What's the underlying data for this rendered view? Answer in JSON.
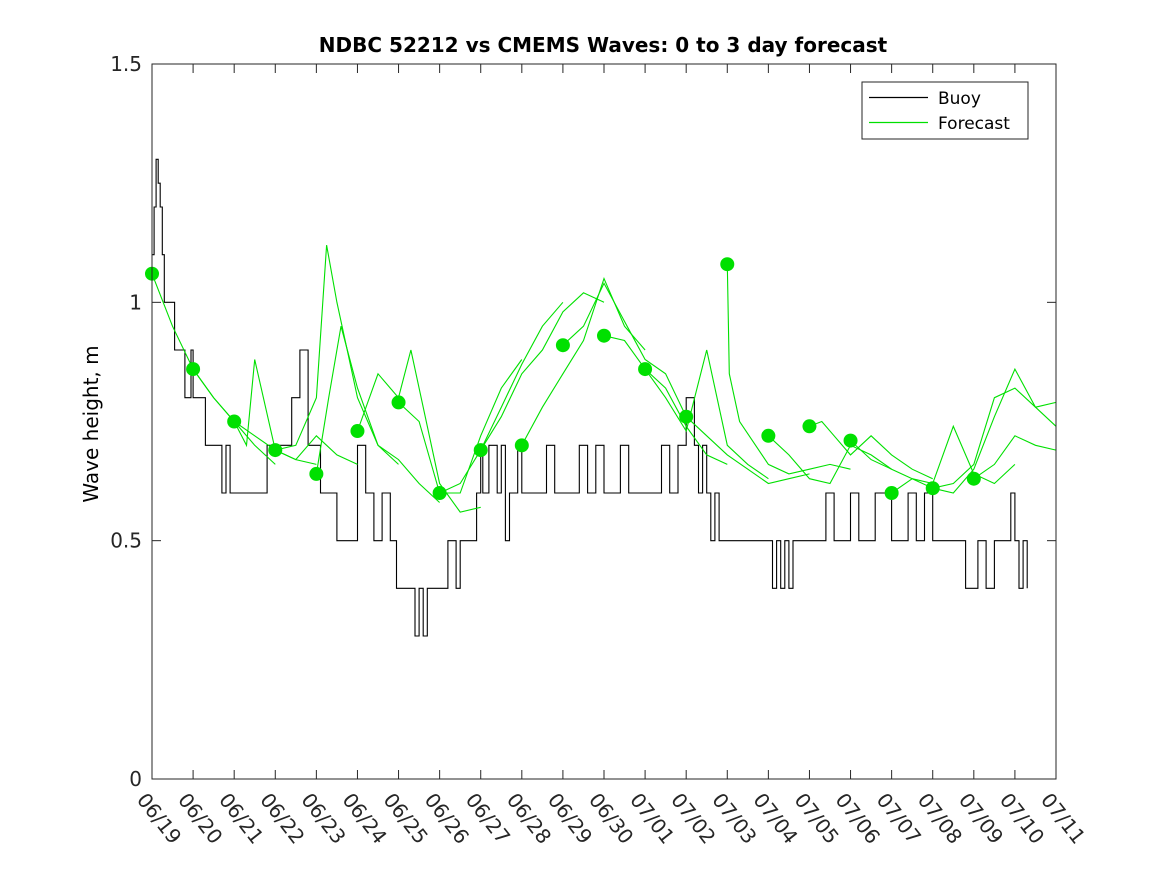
{
  "chart_data": {
    "type": "line",
    "title": "NDBC 52212 vs CMEMS Waves: 0 to 3 day forecast",
    "xlabel": "",
    "ylabel": "Wave height, m",
    "ylim": [
      0,
      1.5
    ],
    "yticks": [
      0,
      0.5,
      1,
      1.5
    ],
    "ytick_labels": [
      "0",
      "0.5",
      "1",
      "1.5"
    ],
    "xlim": [
      0,
      22
    ],
    "xtick_labels": [
      "06/19",
      "06/20",
      "06/21",
      "06/22",
      "06/23",
      "06/24",
      "06/25",
      "06/26",
      "06/27",
      "06/28",
      "06/29",
      "06/30",
      "07/01",
      "07/02",
      "07/03",
      "07/04",
      "07/05",
      "07/06",
      "07/07",
      "07/08",
      "07/09",
      "07/10",
      "07/11"
    ],
    "grid": false,
    "legend": {
      "placement": "top-right",
      "entries": [
        {
          "name": "Buoy",
          "color": "#000000"
        },
        {
          "name": "Forecast",
          "color": "#00e000"
        }
      ]
    },
    "colors": {
      "buoy": "#000000",
      "forecast": "#00e000"
    },
    "buoy": {
      "name": "Buoy",
      "x": [
        0,
        0.05,
        0.1,
        0.15,
        0.2,
        0.25,
        0.3,
        0.35,
        0.45,
        0.55,
        0.65,
        0.8,
        0.9,
        0.95,
        1.0,
        1.1,
        1.3,
        1.5,
        1.7,
        1.8,
        1.9,
        2.0,
        2.1,
        2.2,
        2.3,
        2.45,
        2.6,
        2.8,
        3.0,
        3.2,
        3.4,
        3.6,
        3.8,
        4.0,
        4.1,
        4.2,
        4.3,
        4.4,
        4.5,
        4.6,
        4.7,
        4.8,
        4.9,
        5.0,
        5.2,
        5.4,
        5.6,
        5.8,
        5.95,
        6.1,
        6.2,
        6.3,
        6.4,
        6.5,
        6.6,
        6.7,
        6.8,
        6.9,
        7.0,
        7.1,
        7.2,
        7.3,
        7.4,
        7.5,
        7.6,
        7.7,
        7.8,
        7.9,
        8.0,
        8.05,
        8.1,
        8.2,
        8.4,
        8.5,
        8.6,
        8.7,
        8.8,
        8.9,
        9.0,
        9.2,
        9.4,
        9.6,
        9.8,
        10.0,
        10.2,
        10.4,
        10.6,
        10.8,
        11.0,
        11.2,
        11.4,
        11.6,
        11.8,
        12.0,
        12.2,
        12.4,
        12.6,
        12.8,
        13.0,
        13.2,
        13.3,
        13.4,
        13.5,
        13.6,
        13.7,
        13.8,
        14.0,
        14.2,
        14.4,
        14.6,
        14.8,
        15.0,
        15.1,
        15.2,
        15.3,
        15.4,
        15.5,
        15.6,
        15.8,
        16.0,
        16.2,
        16.4,
        16.6,
        16.8,
        17.0,
        17.2,
        17.4,
        17.6,
        17.8,
        18.0,
        18.2,
        18.4,
        18.6,
        18.8,
        19.0,
        19.2,
        19.4,
        19.6,
        19.8,
        20.0,
        20.1,
        20.2,
        20.3,
        20.5,
        20.7,
        20.9,
        21.0,
        21.1,
        21.2,
        21.3
      ],
      "y": [
        1.1,
        1.2,
        1.3,
        1.25,
        1.2,
        1.1,
        1.0,
        1.0,
        1.0,
        0.9,
        0.9,
        0.8,
        0.8,
        0.9,
        0.8,
        0.8,
        0.7,
        0.7,
        0.6,
        0.7,
        0.6,
        0.6,
        0.6,
        0.6,
        0.6,
        0.6,
        0.6,
        0.7,
        0.7,
        0.7,
        0.8,
        0.9,
        0.7,
        0.7,
        0.6,
        0.6,
        0.6,
        0.6,
        0.5,
        0.5,
        0.5,
        0.5,
        0.5,
        0.7,
        0.6,
        0.5,
        0.6,
        0.5,
        0.4,
        0.4,
        0.4,
        0.4,
        0.3,
        0.4,
        0.3,
        0.4,
        0.4,
        0.4,
        0.4,
        0.4,
        0.5,
        0.5,
        0.4,
        0.5,
        0.5,
        0.5,
        0.5,
        0.6,
        0.7,
        0.6,
        0.6,
        0.7,
        0.6,
        0.7,
        0.5,
        0.6,
        0.6,
        0.7,
        0.6,
        0.6,
        0.6,
        0.7,
        0.6,
        0.6,
        0.6,
        0.7,
        0.6,
        0.7,
        0.6,
        0.6,
        0.7,
        0.6,
        0.6,
        0.6,
        0.6,
        0.7,
        0.6,
        0.7,
        0.8,
        0.7,
        0.6,
        0.7,
        0.6,
        0.5,
        0.6,
        0.5,
        0.5,
        0.5,
        0.5,
        0.5,
        0.5,
        0.5,
        0.4,
        0.5,
        0.4,
        0.5,
        0.4,
        0.5,
        0.5,
        0.5,
        0.5,
        0.6,
        0.5,
        0.5,
        0.6,
        0.5,
        0.5,
        0.6,
        0.6,
        0.5,
        0.5,
        0.6,
        0.5,
        0.6,
        0.5,
        0.5,
        0.5,
        0.5,
        0.4,
        0.4,
        0.5,
        0.5,
        0.4,
        0.5,
        0.5,
        0.6,
        0.5,
        0.4,
        0.5,
        0.4
      ]
    },
    "forecast_start_points": {
      "x": [
        0,
        1,
        2,
        3,
        4,
        5,
        6,
        7,
        8,
        9,
        10,
        11,
        12,
        13,
        14,
        15,
        16,
        17,
        18,
        19,
        20
      ],
      "y": [
        1.06,
        0.86,
        0.75,
        0.69,
        0.64,
        0.73,
        0.79,
        0.6,
        0.69,
        0.7,
        0.91,
        0.93,
        0.86,
        0.76,
        1.08,
        0.72,
        0.74,
        0.71,
        0.6,
        0.61,
        0.63
      ]
    },
    "forecast_series": [
      {
        "x": [
          0,
          0.5,
          1,
          1.5,
          2,
          2.5,
          3
        ],
        "y": [
          1.06,
          0.95,
          0.86,
          0.8,
          0.75,
          0.7,
          0.66
        ]
      },
      {
        "x": [
          1,
          1.5,
          2,
          2.5,
          3,
          3.5,
          4
        ],
        "y": [
          0.86,
          0.8,
          0.75,
          0.72,
          0.69,
          0.67,
          0.66
        ]
      },
      {
        "x": [
          2,
          2.3,
          2.5,
          3,
          3.5,
          4,
          4.5,
          5
        ],
        "y": [
          0.75,
          0.7,
          0.88,
          0.69,
          0.67,
          0.72,
          0.68,
          0.66
        ]
      },
      {
        "x": [
          3,
          3.5,
          4,
          4.25,
          4.5,
          5,
          5.5,
          6
        ],
        "y": [
          0.69,
          0.7,
          0.8,
          1.12,
          1.0,
          0.8,
          0.7,
          0.66
        ]
      },
      {
        "x": [
          4,
          4.3,
          4.6,
          5,
          5.5,
          6,
          6.5,
          7
        ],
        "y": [
          0.64,
          0.8,
          0.95,
          0.82,
          0.7,
          0.67,
          0.62,
          0.58
        ]
      },
      {
        "x": [
          5,
          5.5,
          6,
          6.3,
          7,
          7.5,
          8
        ],
        "y": [
          0.73,
          0.85,
          0.8,
          0.9,
          0.62,
          0.56,
          0.57
        ]
      },
      {
        "x": [
          6,
          6.5,
          7,
          7.5,
          8,
          8.5,
          9
        ],
        "y": [
          0.79,
          0.75,
          0.6,
          0.6,
          0.72,
          0.82,
          0.88
        ]
      },
      {
        "x": [
          7,
          7.5,
          8,
          8.5,
          9,
          9.5,
          10
        ],
        "y": [
          0.6,
          0.62,
          0.69,
          0.78,
          0.87,
          0.95,
          1.0
        ]
      },
      {
        "x": [
          8,
          8.5,
          9,
          9.5,
          10,
          10.5,
          11
        ],
        "y": [
          0.69,
          0.76,
          0.85,
          0.9,
          0.98,
          1.02,
          1.0
        ]
      },
      {
        "x": [
          9,
          9.5,
          10,
          10.5,
          11,
          11.5,
          12
        ],
        "y": [
          0.7,
          0.78,
          0.85,
          0.92,
          1.05,
          0.95,
          0.9
        ]
      },
      {
        "x": [
          10,
          10.5,
          11,
          11.5,
          12,
          12.5,
          13
        ],
        "y": [
          0.91,
          0.95,
          1.04,
          0.96,
          0.88,
          0.85,
          0.76
        ]
      },
      {
        "x": [
          11,
          11.5,
          12,
          12.5,
          13,
          13.5,
          14
        ],
        "y": [
          0.93,
          0.92,
          0.86,
          0.82,
          0.74,
          0.68,
          0.66
        ]
      },
      {
        "x": [
          12,
          12.5,
          13,
          13.5,
          14,
          14.5,
          15
        ],
        "y": [
          0.86,
          0.8,
          0.73,
          0.9,
          0.7,
          0.66,
          0.63
        ]
      },
      {
        "x": [
          13,
          13.5,
          14,
          14.5,
          15,
          15.5,
          16
        ],
        "y": [
          0.76,
          0.72,
          0.68,
          0.65,
          0.62,
          0.63,
          0.64
        ]
      },
      {
        "x": [
          14,
          14.05,
          14.3,
          15,
          15.5,
          16,
          16.5,
          17
        ],
        "y": [
          1.08,
          0.85,
          0.75,
          0.66,
          0.64,
          0.65,
          0.66,
          0.65
        ]
      },
      {
        "x": [
          15,
          15.5,
          16,
          16.5,
          17,
          17.5,
          18
        ],
        "y": [
          0.72,
          0.68,
          0.63,
          0.62,
          0.7,
          0.68,
          0.65
        ]
      },
      {
        "x": [
          16,
          16.3,
          16.6,
          17,
          17.5,
          18,
          18.5,
          19
        ],
        "y": [
          0.74,
          0.75,
          0.72,
          0.68,
          0.72,
          0.68,
          0.65,
          0.63
        ]
      },
      {
        "x": [
          17,
          17.5,
          18,
          18.5,
          19,
          19.5,
          20,
          20.5,
          21
        ],
        "y": [
          0.71,
          0.67,
          0.65,
          0.63,
          0.62,
          0.74,
          0.64,
          0.62,
          0.66
        ]
      },
      {
        "x": [
          18,
          18.5,
          19,
          19.5,
          20,
          20.5,
          21,
          21.5,
          22
        ],
        "y": [
          0.6,
          0.63,
          0.61,
          0.62,
          0.66,
          0.8,
          0.82,
          0.78,
          0.74
        ]
      },
      {
        "x": [
          19,
          19.5,
          20,
          20.5,
          21,
          21.5,
          22
        ],
        "y": [
          0.61,
          0.6,
          0.65,
          0.76,
          0.86,
          0.78,
          0.79
        ]
      },
      {
        "x": [
          20,
          20.5,
          21,
          21.5,
          22
        ],
        "y": [
          0.63,
          0.66,
          0.72,
          0.7,
          0.69
        ]
      }
    ]
  }
}
